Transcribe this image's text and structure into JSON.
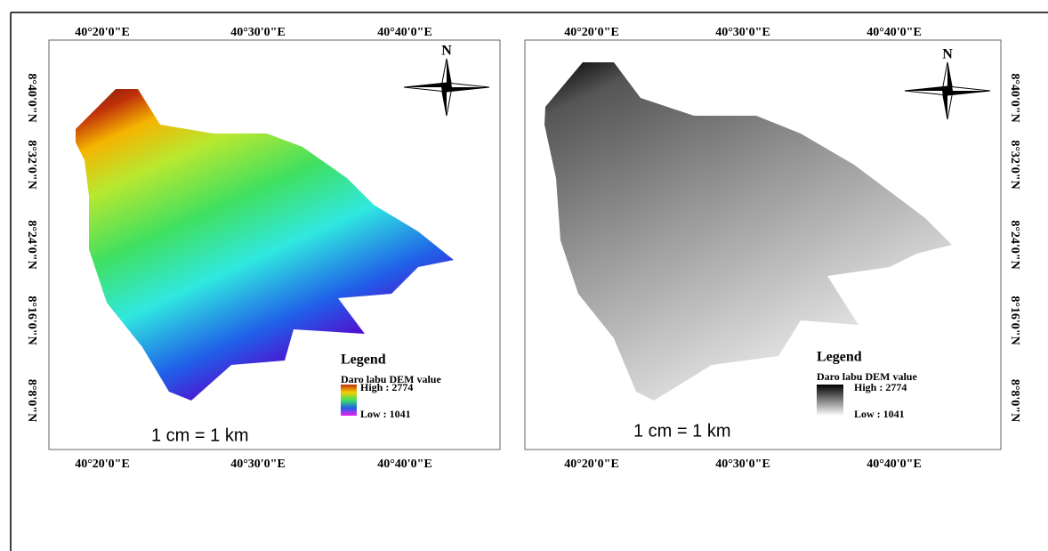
{
  "panels": [
    {
      "top_labels": [
        "40°20'0\"E",
        "40°30'0\"E",
        "40°40'0\"E"
      ],
      "bottom_labels": [
        "40°20'0\"E",
        "40°30'0\"E",
        "40°40'0\"E"
      ],
      "lat_labels": [
        "8°40'0\"N",
        "8°32'0\"N",
        "8°24'0\"N",
        "8°16'0\"N",
        "8°8'0\"N"
      ],
      "north": "N",
      "legend": {
        "title": "Legend",
        "field": "Daro labu DEM value",
        "high": "High : 2774",
        "low": "Low : 1041"
      },
      "scale": "1 cm = 1 km"
    },
    {
      "top_labels": [
        "40°20'0\"E",
        "40°30'0\"E",
        "40°40'0\"E"
      ],
      "bottom_labels": [
        "40°20'0\"E",
        "40°30'0\"E",
        "40°40'0\"E"
      ],
      "lat_labels": [
        "8°40'0\"N",
        "8°32'0\"N",
        "8°24'0\"N",
        "8°16'0\"N",
        "8°8'0\"N"
      ],
      "north": "N",
      "legend": {
        "title": "Legend",
        "field": "Daro labu DEM value",
        "high": "High : 2774",
        "low": "Low : 1041"
      },
      "scale": "1 cm = 1 km"
    }
  ]
}
